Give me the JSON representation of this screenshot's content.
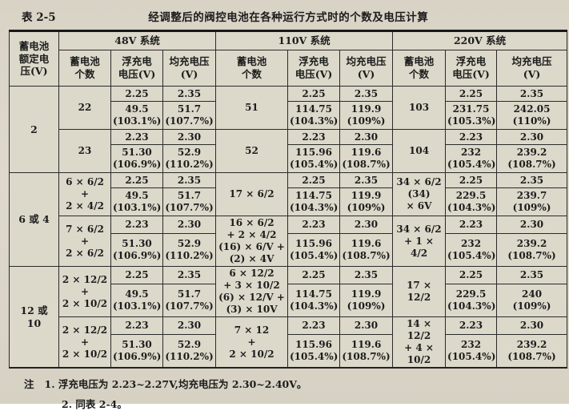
{
  "page": {
    "table_label": "表 2-5",
    "title": "经调整后的阀控电池在各种运行方式时的个数及电压计算",
    "notes": {
      "prefix": "注",
      "items": [
        "1. 浮充电压为 2.23~2.27V,均充电压为 2.30~2.40V。",
        "2. 同表 2-4。"
      ]
    }
  },
  "colors": {
    "paper": "#d9d4c6",
    "ink": "#1c1c1c",
    "table_border": "#2a2a2a"
  },
  "table": {
    "header": {
      "col1": "蓄电池\n额定电\n压(V)",
      "systems": [
        "48V 系统",
        "110V 系统",
        "220V 系统"
      ],
      "subcols": [
        "蓄电池\n个数",
        "浮充电\n电压(V)",
        "均充电压\n(V)"
      ]
    },
    "body": [
      [
        {
          "t": "2",
          "rs": 4,
          "cls": "lbl"
        },
        {
          "t": "22",
          "rs": 2
        },
        {
          "t": "2.25"
        },
        {
          "t": "2.35"
        },
        {
          "t": "51",
          "rs": 2
        },
        {
          "t": "2.25"
        },
        {
          "t": "2.35"
        },
        {
          "t": "103",
          "rs": 2
        },
        {
          "t": "2.25"
        },
        {
          "t": "2.35"
        }
      ],
      [
        {
          "t": "49.5\n(103.1%)"
        },
        {
          "t": "51.7\n(107.7%)"
        },
        {
          "t": "114.75\n(104.3%)"
        },
        {
          "t": "119.9\n(109%)"
        },
        {
          "t": "231.75\n(105.3%)"
        },
        {
          "t": "242.05\n(110%)"
        }
      ],
      [
        {
          "t": "23",
          "rs": 2
        },
        {
          "t": "2.23"
        },
        {
          "t": "2.30"
        },
        {
          "t": "52",
          "rs": 2
        },
        {
          "t": "2.23"
        },
        {
          "t": "2.30"
        },
        {
          "t": "104",
          "rs": 2
        },
        {
          "t": "2.23"
        },
        {
          "t": "2.30"
        }
      ],
      [
        {
          "t": "51.30\n(106.9%)"
        },
        {
          "t": "52.9\n(110.2%)"
        },
        {
          "t": "115.96\n(105.4%)"
        },
        {
          "t": "119.6\n(108.7%)"
        },
        {
          "t": "232\n(105.4%)"
        },
        {
          "t": "239.2\n(108.7%)"
        }
      ],
      [
        {
          "t": "6 或 4",
          "rs": 4,
          "cls": "lbl"
        },
        {
          "t": "6 × 6/2\n+\n2 × 4/2",
          "rs": 2
        },
        {
          "t": "2.25"
        },
        {
          "t": "2.35"
        },
        {
          "t": "17 × 6/2",
          "rs": 2
        },
        {
          "t": "2.25"
        },
        {
          "t": "2.35"
        },
        {
          "t": "34 × 6/2\n(34)\n× 6V",
          "rs": 2
        },
        {
          "t": "2.25"
        },
        {
          "t": "2.35"
        }
      ],
      [
        {
          "t": "49.5\n(103.1%)"
        },
        {
          "t": "51.7\n(107.7%)"
        },
        {
          "t": "114.75\n(104.3%)"
        },
        {
          "t": "119.9\n(109%)"
        },
        {
          "t": "229.5\n(104.3%)"
        },
        {
          "t": "239.7\n(109%)"
        }
      ],
      [
        {
          "t": "7 × 6/2\n+\n2 × 6/2",
          "rs": 2
        },
        {
          "t": "2.23"
        },
        {
          "t": "2.30"
        },
        {
          "t": "16 × 6/2\n+ 2 × 4/2\n(16) × 6/V +\n(2) × 4V",
          "rs": 2
        },
        {
          "t": "2.23"
        },
        {
          "t": "2.30"
        },
        {
          "t": "34 × 6/2\n+ 1 × 4/2",
          "rs": 2
        },
        {
          "t": "2.23"
        },
        {
          "t": "2.30"
        }
      ],
      [
        {
          "t": "51.30\n(106.9%)"
        },
        {
          "t": "52.9\n(110.2%)"
        },
        {
          "t": "115.96\n(105.4%)"
        },
        {
          "t": "119.6\n(108.7%)"
        },
        {
          "t": "232\n(105.4%)"
        },
        {
          "t": "239.2\n(108.7%)"
        }
      ],
      [
        {
          "t": "12 或\n10",
          "rs": 4,
          "cls": "lbl"
        },
        {
          "t": "2 × 12/2\n+\n2 × 10/2",
          "rs": 2
        },
        {
          "t": "2.25"
        },
        {
          "t": "2.35"
        },
        {
          "t": "6 × 12/2\n+ 3 × 10/2\n(6) × 12/V +\n(3) × 10V",
          "rs": 2
        },
        {
          "t": "2.25"
        },
        {
          "t": "2.35"
        },
        {
          "t": "17 × 12/2",
          "rs": 2
        },
        {
          "t": "2.25"
        },
        {
          "t": "2.35"
        }
      ],
      [
        {
          "t": "49.5\n(103.1%)"
        },
        {
          "t": "51.7\n(107.7%)"
        },
        {
          "t": "114.75\n(104.3%)"
        },
        {
          "t": "119.9\n(109%)"
        },
        {
          "t": "229.5\n(104.3%)"
        },
        {
          "t": "240\n(109%)"
        }
      ],
      [
        {
          "t": "2 × 12/2\n+\n2 × 10/2",
          "rs": 2
        },
        {
          "t": "2.23"
        },
        {
          "t": "2.30"
        },
        {
          "t": "7 × 12\n+\n2 × 10/2",
          "rs": 2
        },
        {
          "t": "2.23"
        },
        {
          "t": "2.30"
        },
        {
          "t": "14 × 12/2\n+ 4 × 10/2",
          "rs": 2
        },
        {
          "t": "2.23"
        },
        {
          "t": "2.30"
        }
      ],
      [
        {
          "t": "51.30\n(106.9%)"
        },
        {
          "t": "52.9\n(110.2%)"
        },
        {
          "t": "115.96\n(105.4%)"
        },
        {
          "t": "119.6\n(108.7%)"
        },
        {
          "t": "232\n(105.4%)"
        },
        {
          "t": "239.2\n(108.7%)"
        }
      ]
    ]
  }
}
